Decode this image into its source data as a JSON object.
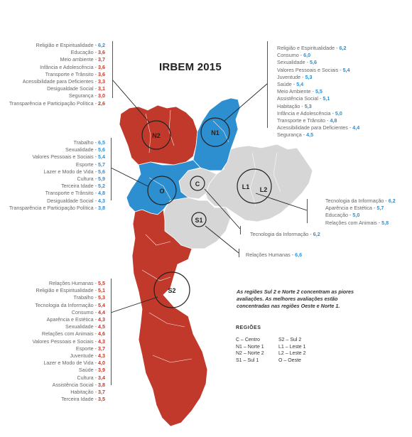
{
  "title": "IRBEM 2015",
  "colors": {
    "worst": "#c0392b",
    "best": "#2e8fd0",
    "neutral": "#d6d6d6"
  },
  "regions": {
    "N2": {
      "label": "N2",
      "color": "worst"
    },
    "N1": {
      "label": "N1",
      "color": "best"
    },
    "O": {
      "label": "O",
      "color": "best"
    },
    "C": {
      "label": "C",
      "color": "neutral"
    },
    "L1L2": {
      "label1": "L1",
      "label2": "L2",
      "color": "neutral"
    },
    "S1": {
      "label": "S1",
      "color": "neutral"
    },
    "S2": {
      "label": "S2",
      "color": "worst"
    }
  },
  "n2_list": [
    {
      "label": "Religião e Espiritualidade -",
      "value": "6,2",
      "color": "blue"
    },
    {
      "label": "Educação -",
      "value": "3,6",
      "color": "red"
    },
    {
      "label": "Meio ambiente -",
      "value": "3,7",
      "color": "red"
    },
    {
      "label": "Infância e Adolescência -",
      "value": "3,6",
      "color": "red"
    },
    {
      "label": "Transporte e Trânsito -",
      "value": "3,6",
      "color": "red"
    },
    {
      "label": "Acessibilidade para Deficientes -",
      "value": "3,3",
      "color": "red"
    },
    {
      "label": "Desigualdade Social -",
      "value": "3,1",
      "color": "red"
    },
    {
      "label": "Segurança -",
      "value": "3,0",
      "color": "red"
    },
    {
      "label": "Transparência e Participação Política -",
      "value": "2,6",
      "color": "red"
    }
  ],
  "n1_list": [
    {
      "label": "Religião e Espiritualidade -",
      "value": "6,2",
      "color": "blue"
    },
    {
      "label": "Consumo -",
      "value": "6,0",
      "color": "blue"
    },
    {
      "label": "Sexualidade -",
      "value": "5,6",
      "color": "blue"
    },
    {
      "label": "Valores Pessoais e Sociais -",
      "value": "5,4",
      "color": "blue"
    },
    {
      "label": "Juventude -",
      "value": "5,3",
      "color": "blue"
    },
    {
      "label": "Saúde -",
      "value": "5,4",
      "color": "blue"
    },
    {
      "label": "Meio Ambiente -",
      "value": "5,5",
      "color": "blue"
    },
    {
      "label": "Assistência Social -",
      "value": "5,1",
      "color": "blue"
    },
    {
      "label": "Habitação -",
      "value": "5,3",
      "color": "blue"
    },
    {
      "label": "Infância e Adolescência -",
      "value": "5,0",
      "color": "blue"
    },
    {
      "label": "Transporte e Trânsito -",
      "value": "4,8",
      "color": "blue"
    },
    {
      "label": "Acessibilidade para Deficientes -",
      "value": "4,4",
      "color": "blue"
    },
    {
      "label": "Segurança -",
      "value": "4,5",
      "color": "blue"
    }
  ],
  "o_list": [
    {
      "label": "Trabalho -",
      "value": "6,5",
      "color": "blue"
    },
    {
      "label": "Sexualidade -",
      "value": "5,6",
      "color": "blue"
    },
    {
      "label": "Valores Pessoais e Sociais -",
      "value": "5,4",
      "color": "blue"
    },
    {
      "label": "Esporte -",
      "value": "5,7",
      "color": "blue"
    },
    {
      "label": "Lazer e Modo de Vida -",
      "value": "5,6",
      "color": "blue"
    },
    {
      "label": "Cultura -",
      "value": "5,9",
      "color": "blue"
    },
    {
      "label": "Terceira Idade -",
      "value": "5,2",
      "color": "blue"
    },
    {
      "label": "Transporte e Trânsito -",
      "value": "4,8",
      "color": "blue"
    },
    {
      "label": "Desigualdade Social -",
      "value": "4,3",
      "color": "blue"
    },
    {
      "label": "Transparência e Participação Política -",
      "value": "3,8",
      "color": "blue"
    }
  ],
  "l_list": [
    {
      "label": "Tecnologia da Informação -",
      "value": "6,2",
      "color": "blue"
    },
    {
      "label": "Aparência e Estética -",
      "value": "5,7",
      "color": "blue"
    },
    {
      "label": "Educação -",
      "value": "5,0",
      "color": "blue"
    },
    {
      "label": "Relações com Animais -",
      "value": "5,8",
      "color": "blue"
    }
  ],
  "c_item": {
    "label": "Tecnologia da Informação -",
    "value": "6,2"
  },
  "s1_item": {
    "label": "Relações Humanas -",
    "value": "6,6"
  },
  "s2_list": [
    {
      "label": "Relações Humanas -",
      "value": "5,5",
      "color": "red"
    },
    {
      "label": "Religião e Espiritualidade -",
      "value": "5,1",
      "color": "red"
    },
    {
      "label": "Trabalho -",
      "value": "5,3",
      "color": "red"
    },
    {
      "label": "Tecnologia da Informação -",
      "value": "5,4",
      "color": "red"
    },
    {
      "label": "Consumo -",
      "value": "4,4",
      "color": "red"
    },
    {
      "label": "Aparência e Estética -",
      "value": "4,3",
      "color": "red"
    },
    {
      "label": "Sexualidade -",
      "value": "4,5",
      "color": "red"
    },
    {
      "label": "Relações com Animais -",
      "value": "4,6",
      "color": "red"
    },
    {
      "label": "Valores Pessoais e Sociais -",
      "value": "4,3",
      "color": "red"
    },
    {
      "label": "Esporte -",
      "value": "3,7",
      "color": "red"
    },
    {
      "label": "Juventude -",
      "value": "4,3",
      "color": "red"
    },
    {
      "label": "Lazer e Modo de Vida -",
      "value": "4,0",
      "color": "red"
    },
    {
      "label": "Saúde -",
      "value": "3,9",
      "color": "red"
    },
    {
      "label": "Cultura -",
      "value": "3,4",
      "color": "red"
    },
    {
      "label": "Assistência Social -",
      "value": "3,8",
      "color": "red"
    },
    {
      "label": "Habitação -",
      "value": "3,7",
      "color": "red"
    },
    {
      "label": "Terceira Idade -",
      "value": "3,5",
      "color": "red"
    }
  ],
  "note": "As regiões Sul 2  e Norte 2 concentram as piores avaliações. As melhores avaliações estão concentradas nas regiões Oeste e Norte 1.",
  "legend": {
    "title": "REGIÕES",
    "col1": [
      "C – Centro",
      "N1 – Norte 1",
      "N2 – Norte 2",
      "S1 – Sul 1"
    ],
    "col2": [
      "S2 – Sul 2",
      "L1 – Leste 1",
      "L2 – Leste 2",
      "O – Oeste"
    ]
  }
}
